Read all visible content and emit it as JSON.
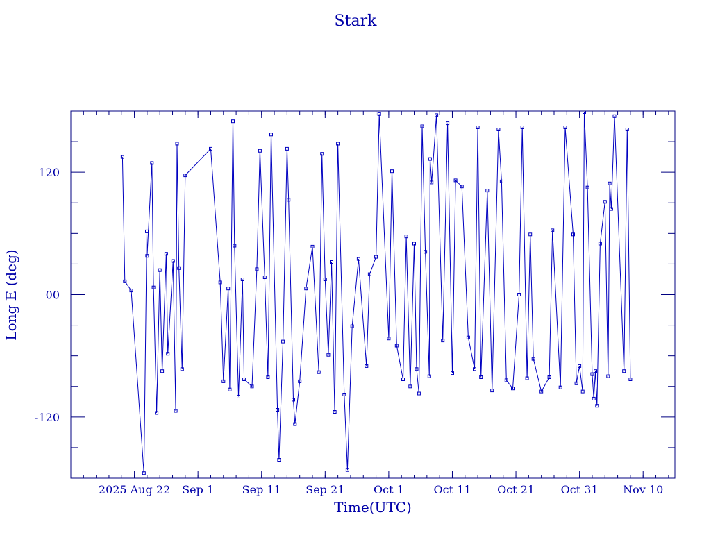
{
  "chart_data": {
    "type": "scatter",
    "title": "Stark",
    "xlabel": "Time(UTC)",
    "ylabel": "Long E (deg)",
    "colors": {
      "axis": "#000080",
      "series": "#0000c0",
      "text": "#0000a8"
    },
    "x_ticks": [
      {
        "label": "2025 Aug 22",
        "date": "2025-08-22"
      },
      {
        "label": "Sep  1",
        "date": "2025-09-01"
      },
      {
        "label": "Sep 11",
        "date": "2025-09-11"
      },
      {
        "label": "Sep 21",
        "date": "2025-09-21"
      },
      {
        "label": "Oct  1",
        "date": "2025-10-01"
      },
      {
        "label": "Oct 11",
        "date": "2025-10-11"
      },
      {
        "label": "Oct 21",
        "date": "2025-10-21"
      },
      {
        "label": "Oct 31",
        "date": "2025-10-31"
      },
      {
        "label": "Nov 10",
        "date": "2025-11-10"
      }
    ],
    "xlim": [
      "2025-08-12",
      "2025-11-15"
    ],
    "y_ticks": [
      {
        "label": "-120",
        "value": -120
      },
      {
        "label": "00",
        "value": 0
      },
      {
        "label": "120",
        "value": 120
      }
    ],
    "ylim": [
      -180,
      180
    ],
    "grid": false,
    "series": [
      {
        "values": [
          [
            "2025-08-20 03:00",
            135
          ],
          [
            "2025-08-20 12:00",
            13
          ],
          [
            "2025-08-21 12:00",
            4
          ],
          [
            "2025-08-23 12:00",
            -175
          ],
          [
            "2025-08-23 23:00",
            62
          ],
          [
            "2025-08-24 00:00",
            38
          ],
          [
            "2025-08-24 18:00",
            129
          ],
          [
            "2025-08-25 00:00",
            7
          ],
          [
            "2025-08-25 12:00",
            -116
          ],
          [
            "2025-08-26 00:00",
            24
          ],
          [
            "2025-08-26 09:00",
            -75
          ],
          [
            "2025-08-27 00:00",
            40
          ],
          [
            "2025-08-27 06:00",
            -58
          ],
          [
            "2025-08-28 02:00",
            33
          ],
          [
            "2025-08-28 12:00",
            -114
          ],
          [
            "2025-08-28 17:00",
            148
          ],
          [
            "2025-08-29 00:00",
            26
          ],
          [
            "2025-08-29 12:00",
            -73
          ],
          [
            "2025-08-30 00:00",
            117
          ],
          [
            "2025-09-03 00:00",
            143
          ],
          [
            "2025-09-04 12:00",
            12
          ],
          [
            "2025-09-05 00:00",
            -85
          ],
          [
            "2025-09-05 18:00",
            6
          ],
          [
            "2025-09-06 00:00",
            -93
          ],
          [
            "2025-09-06 12:00",
            170
          ],
          [
            "2025-09-06 18:00",
            48
          ],
          [
            "2025-09-07 09:00",
            -100
          ],
          [
            "2025-09-08 00:00",
            15
          ],
          [
            "2025-09-08 06:00",
            -83
          ],
          [
            "2025-09-09 12:00",
            -90
          ],
          [
            "2025-09-10 06:00",
            25
          ],
          [
            "2025-09-10 18:00",
            141
          ],
          [
            "2025-09-11 12:00",
            17
          ],
          [
            "2025-09-12 00:00",
            -81
          ],
          [
            "2025-09-12 12:00",
            157
          ],
          [
            "2025-09-13 12:00",
            -113
          ],
          [
            "2025-09-13 18:00",
            -162
          ],
          [
            "2025-09-14 09:00",
            -46
          ],
          [
            "2025-09-15 00:00",
            143
          ],
          [
            "2025-09-15 06:00",
            93
          ],
          [
            "2025-09-16 00:00",
            -103
          ],
          [
            "2025-09-16 06:00",
            -127
          ],
          [
            "2025-09-17 00:00",
            -85
          ],
          [
            "2025-09-18 00:00",
            6
          ],
          [
            "2025-09-19 00:00",
            47
          ],
          [
            "2025-09-20 00:00",
            -76
          ],
          [
            "2025-09-20 12:00",
            138
          ],
          [
            "2025-09-21 00:00",
            15
          ],
          [
            "2025-09-21 12:00",
            -59
          ],
          [
            "2025-09-22 00:00",
            32
          ],
          [
            "2025-09-22 12:00",
            -115
          ],
          [
            "2025-09-23 00:00",
            148
          ],
          [
            "2025-09-24 00:00",
            -98
          ],
          [
            "2025-09-24 12:00",
            -172
          ],
          [
            "2025-09-25 06:00",
            -31
          ],
          [
            "2025-09-26 06:00",
            35
          ],
          [
            "2025-09-27 12:00",
            -70
          ],
          [
            "2025-09-28 00:00",
            20
          ],
          [
            "2025-09-29 00:00",
            37
          ],
          [
            "2025-09-29 12:00",
            177
          ],
          [
            "2025-10-01 00:00",
            -43
          ],
          [
            "2025-10-01 12:00",
            121
          ],
          [
            "2025-10-02 06:00",
            -50
          ],
          [
            "2025-10-03 06:00",
            -83
          ],
          [
            "2025-10-03 18:00",
            57
          ],
          [
            "2025-10-04 09:00",
            -90
          ],
          [
            "2025-10-05 00:00",
            50
          ],
          [
            "2025-10-05 09:00",
            -73
          ],
          [
            "2025-10-05 18:00",
            -97
          ],
          [
            "2025-10-06 06:00",
            165
          ],
          [
            "2025-10-06 18:00",
            42
          ],
          [
            "2025-10-07 09:00",
            -80
          ],
          [
            "2025-10-07 12:00",
            133
          ],
          [
            "2025-10-07 18:00",
            110
          ],
          [
            "2025-10-08 12:00",
            176
          ],
          [
            "2025-10-09 12:00",
            -45
          ],
          [
            "2025-10-10 06:00",
            168
          ],
          [
            "2025-10-11 00:00",
            -77
          ],
          [
            "2025-10-11 12:00",
            112
          ],
          [
            "2025-10-12 12:00",
            106
          ],
          [
            "2025-10-13 12:00",
            -42
          ],
          [
            "2025-10-14 12:00",
            -73
          ],
          [
            "2025-10-15 00:00",
            164
          ],
          [
            "2025-10-15 12:00",
            -81
          ],
          [
            "2025-10-16 12:00",
            102
          ],
          [
            "2025-10-17 06:00",
            -94
          ],
          [
            "2025-10-18 06:00",
            162
          ],
          [
            "2025-10-18 18:00",
            111
          ],
          [
            "2025-10-19 12:00",
            -84
          ],
          [
            "2025-10-20 12:00",
            -92
          ],
          [
            "2025-10-21 12:00",
            0
          ],
          [
            "2025-10-22 00:00",
            164
          ],
          [
            "2025-10-22 18:00",
            -82
          ],
          [
            "2025-10-23 06:00",
            59
          ],
          [
            "2025-10-23 18:00",
            -63
          ],
          [
            "2025-10-25 00:00",
            -95
          ],
          [
            "2025-10-26 06:00",
            -81
          ],
          [
            "2025-10-26 18:00",
            63
          ],
          [
            "2025-10-28 00:00",
            -91
          ],
          [
            "2025-10-28 18:00",
            164
          ],
          [
            "2025-10-30 00:00",
            59
          ],
          [
            "2025-10-30 12:00",
            -87
          ],
          [
            "2025-10-31 00:00",
            -70
          ],
          [
            "2025-10-31 12:00",
            -95
          ],
          [
            "2025-10-31 18:00",
            179
          ],
          [
            "2025-11-01 06:00",
            105
          ],
          [
            "2025-11-02 00:00",
            -78
          ],
          [
            "2025-11-02 06:00",
            -102
          ],
          [
            "2025-11-02 12:00",
            -75
          ],
          [
            "2025-11-02 18:00",
            -109
          ],
          [
            "2025-11-03 06:00",
            50
          ],
          [
            "2025-11-04 00:00",
            91
          ],
          [
            "2025-11-04 12:00",
            -80
          ],
          [
            "2025-11-04 18:00",
            109
          ],
          [
            "2025-11-05 00:00",
            84
          ],
          [
            "2025-11-05 12:00",
            175
          ],
          [
            "2025-11-07 00:00",
            -75
          ],
          [
            "2025-11-07 12:00",
            162
          ],
          [
            "2025-11-08 00:00",
            -83
          ]
        ]
      }
    ]
  }
}
